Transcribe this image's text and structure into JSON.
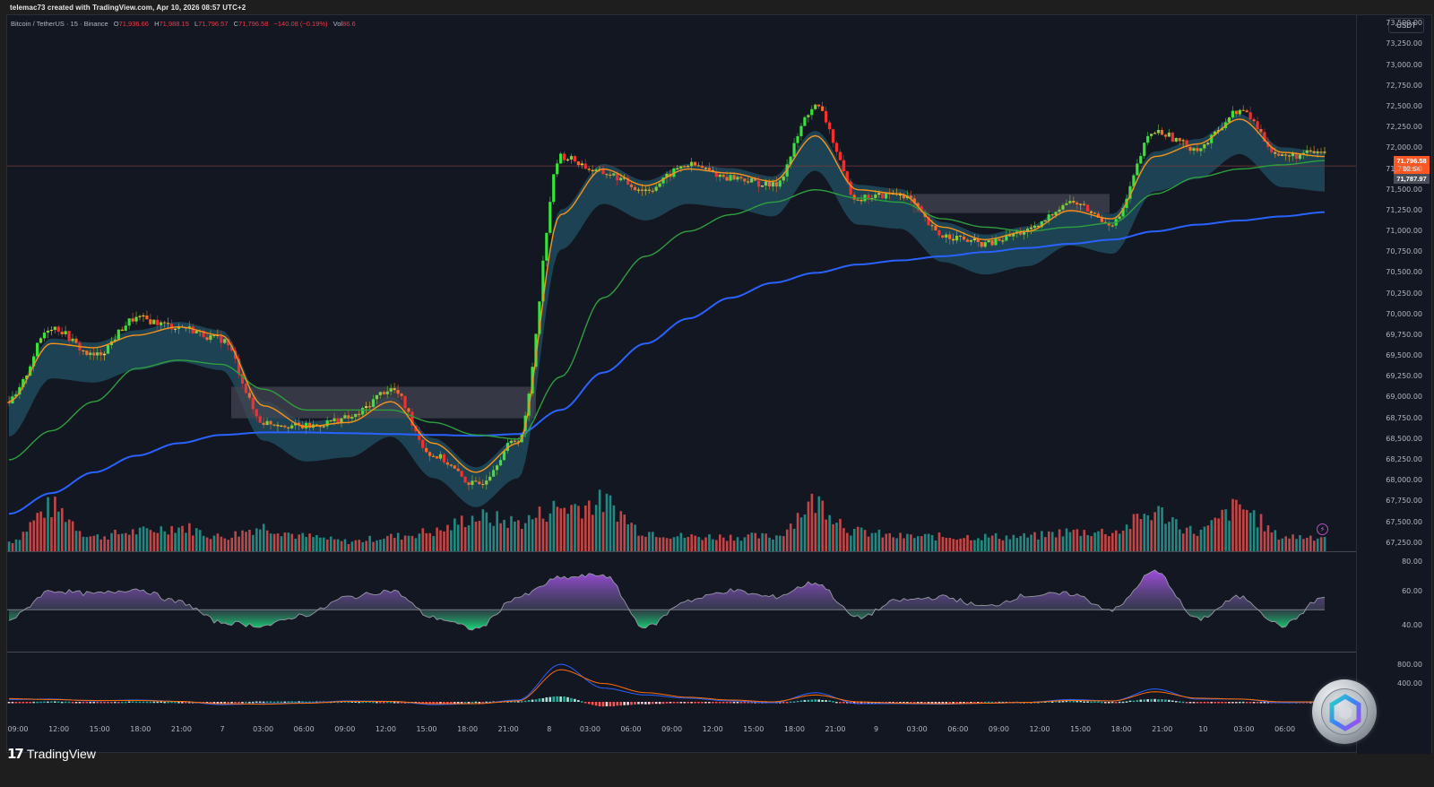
{
  "header": {
    "credit": "telemac73 created with TradingView.com, Apr 10, 2026 08:57 UTC+2"
  },
  "legend": {
    "symbol": "Bitcoin / TetherUS · 15 · Binance",
    "open_label": "O",
    "open": "71,936.66",
    "high_label": "H",
    "high": "71,988.15",
    "low_label": "L",
    "low": "71,796.57",
    "close_label": "C",
    "close": "71,796.58",
    "change": "−140.08 (−0.19%)",
    "vol_label": "Vol",
    "vol": "86.6"
  },
  "price_axis": {
    "currency": "USDT",
    "last_price": "71,796.58",
    "countdown": "02:54",
    "mark_price": "71,787.97",
    "labels": [
      "73,500.00",
      "73,250.00",
      "73,000.00",
      "72,750.00",
      "72,500.00",
      "72,250.00",
      "72,000.00",
      "71,750.00",
      "71,500.00",
      "71,250.00",
      "71,000.00",
      "70,750.00",
      "70,500.00",
      "70,250.00",
      "70,000.00",
      "69,750.00",
      "69,500.00",
      "69,250.00",
      "69,000.00",
      "68,750.00",
      "68,500.00",
      "68,250.00",
      "68,000.00",
      "67,750.00",
      "67,500.00",
      "67,250.00"
    ]
  },
  "rsi_axis": {
    "labels": [
      "80.00",
      "60.00",
      "40.00"
    ]
  },
  "macd_axis": {
    "labels": [
      "800.00",
      "400.00"
    ]
  },
  "time_axis": {
    "labels": [
      "09:00",
      "12:00",
      "15:00",
      "18:00",
      "21:00",
      "7",
      "03:00",
      "06:00",
      "09:00",
      "12:00",
      "15:00",
      "18:00",
      "21:00",
      "8",
      "03:00",
      "06:00",
      "09:00",
      "12:00",
      "15:00",
      "18:00",
      "21:00",
      "9",
      "03:00",
      "06:00",
      "09:00",
      "12:00",
      "15:00",
      "18:00",
      "21:00",
      "10",
      "03:00",
      "06:00"
    ]
  },
  "footer": {
    "brand": "TradingView",
    "logo_mark": "17"
  },
  "colors": {
    "background": "#131722",
    "up_volume": "#26a69a",
    "down_volume": "#ef5350",
    "ma_fast": "#f7931a",
    "ma_mid": "#2e9e3e",
    "ma_slow": "#2962ff",
    "cloud_teal": "#1e4a5c",
    "cloud_gray": "#434651",
    "rsi_up": "#9c27b0",
    "rsi_down": "#00e676",
    "last_price_tag": "#ff5722"
  },
  "chart_data": [
    {
      "type": "candlestick",
      "title": "Bitcoin / TetherUS · 15 · Binance",
      "ylabel": "USDT",
      "ylim": [
        67150,
        73600
      ],
      "x": [
        "Apr 6 09:00",
        "Apr 6 12:00",
        "Apr 6 15:00",
        "Apr 6 18:00",
        "Apr 6 21:00",
        "Apr 7 00:00",
        "Apr 7 03:00",
        "Apr 7 06:00",
        "Apr 7 09:00",
        "Apr 7 12:00",
        "Apr 7 15:00",
        "Apr 7 18:00",
        "Apr 7 21:00",
        "Apr 8 00:00",
        "Apr 8 03:00",
        "Apr 8 06:00",
        "Apr 8 09:00",
        "Apr 8 12:00",
        "Apr 8 15:00",
        "Apr 8 18:00",
        "Apr 8 21:00",
        "Apr 9 00:00",
        "Apr 9 03:00",
        "Apr 9 06:00",
        "Apr 9 09:00",
        "Apr 9 12:00",
        "Apr 9 15:00",
        "Apr 9 18:00",
        "Apr 9 21:00",
        "Apr 10 00:00",
        "Apr 10 03:00",
        "Apr 10 06:00"
      ],
      "series": [
        {
          "name": "Close (approx)",
          "values": [
            68950,
            69850,
            69500,
            69950,
            69850,
            69700,
            68700,
            68650,
            68750,
            69100,
            68300,
            67950,
            68500,
            71900,
            71700,
            71500,
            71800,
            71650,
            71550,
            72500,
            71400,
            71450,
            70950,
            70850,
            71000,
            71350,
            71100,
            72200,
            72000,
            72450,
            71900,
            71950
          ]
        },
        {
          "name": "MA fast (orange)",
          "values": [
            68950,
            69650,
            69600,
            69750,
            69850,
            69750,
            68900,
            68650,
            68700,
            68950,
            68450,
            68100,
            68450,
            71200,
            71750,
            71550,
            71750,
            71700,
            71600,
            72150,
            71500,
            71450,
            71050,
            70900,
            71000,
            71250,
            71150,
            71900,
            72050,
            72350,
            71950,
            71900
          ]
        },
        {
          "name": "MA mid (green)",
          "values": [
            68250,
            68600,
            68950,
            69350,
            69450,
            69400,
            69100,
            68850,
            68850,
            68850,
            68700,
            68550,
            68500,
            69250,
            70200,
            70700,
            71000,
            71200,
            71350,
            71500,
            71400,
            71350,
            71150,
            71050,
            71000,
            71050,
            71100,
            71450,
            71650,
            71750,
            71800,
            71850
          ]
        },
        {
          "name": "MA slow (blue)",
          "values": [
            67600,
            67850,
            68100,
            68300,
            68450,
            68550,
            68580,
            68580,
            68570,
            68560,
            68550,
            68540,
            68560,
            68850,
            69300,
            69650,
            69950,
            70200,
            70380,
            70500,
            70600,
            70650,
            70700,
            70750,
            70800,
            70850,
            70900,
            71000,
            71080,
            71130,
            71180,
            71230
          ]
        }
      ],
      "annotations": {
        "high_spike": 73050,
        "low_dip": 67850,
        "last": 71796.58
      }
    },
    {
      "type": "bar",
      "title": "Volume",
      "series": [
        {
          "name": "Volume (relative)",
          "values": [
            0.2,
            0.9,
            0.3,
            0.4,
            0.5,
            0.3,
            0.5,
            0.3,
            0.2,
            0.3,
            0.4,
            0.7,
            0.6,
            0.9,
            1.0,
            0.4,
            0.3,
            0.3,
            0.3,
            1.0,
            0.4,
            0.3,
            0.3,
            0.3,
            0.3,
            0.4,
            0.4,
            0.8,
            0.4,
            0.9,
            0.3,
            0.3
          ]
        }
      ]
    },
    {
      "type": "area",
      "title": "RSI",
      "ylim": [
        30,
        85
      ],
      "reference_line": 50,
      "axis_ticks": [
        80,
        60,
        40
      ],
      "series": [
        {
          "name": "RSI",
          "values": [
            44,
            62,
            60,
            63,
            55,
            42,
            40,
            47,
            58,
            62,
            45,
            38,
            58,
            70,
            72,
            39,
            56,
            62,
            58,
            67,
            45,
            56,
            58,
            52,
            59,
            60,
            50,
            74,
            44,
            58,
            40,
            58
          ]
        }
      ]
    },
    {
      "type": "line",
      "title": "MACD",
      "axis_ticks": [
        800,
        400
      ],
      "series": [
        {
          "name": "MACD (blue)",
          "values": [
            50,
            60,
            20,
            40,
            10,
            -60,
            -40,
            -20,
            20,
            10,
            -60,
            -40,
            40,
            820,
            300,
            150,
            80,
            20,
            -20,
            200,
            -40,
            -40,
            -50,
            -30,
            -10,
            50,
            20,
            280,
            60,
            60,
            -20,
            0
          ]
        },
        {
          "name": "Signal (orange)",
          "values": [
            70,
            50,
            30,
            30,
            10,
            -40,
            -50,
            -30,
            10,
            10,
            -40,
            -40,
            20,
            700,
            400,
            200,
            100,
            40,
            0,
            150,
            0,
            -30,
            -40,
            -30,
            -10,
            30,
            20,
            220,
            80,
            60,
            0,
            0
          ]
        },
        {
          "name": "Histogram",
          "values": [
            -20,
            10,
            -10,
            10,
            0,
            -20,
            10,
            10,
            10,
            0,
            -20,
            0,
            20,
            120,
            -100,
            -50,
            -20,
            -20,
            -20,
            50,
            -40,
            -10,
            -10,
            0,
            0,
            20,
            0,
            60,
            -20,
            0,
            -20,
            0
          ]
        }
      ]
    }
  ]
}
